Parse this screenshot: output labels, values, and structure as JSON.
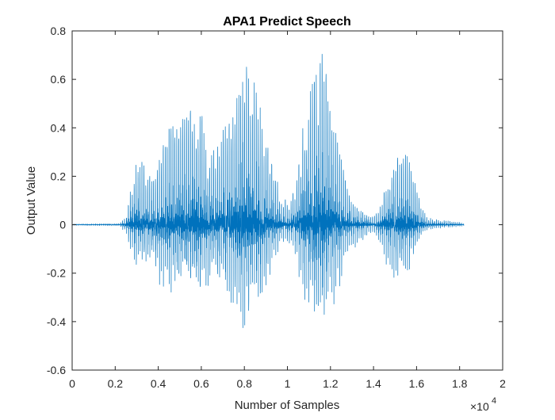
{
  "chart_data": {
    "type": "line",
    "title": "APA1 Predict Speech",
    "xlabel": "Number of Samples",
    "ylabel": "Output Value",
    "x_exponent_label": "×10",
    "x_exponent_value": "4",
    "xlim": [
      0,
      20000
    ],
    "ylim": [
      -0.6,
      0.8
    ],
    "xticks": [
      0,
      2000,
      4000,
      6000,
      8000,
      10000,
      12000,
      14000,
      16000,
      18000,
      20000
    ],
    "xtick_labels": [
      "0",
      "0.2",
      "0.4",
      "0.6",
      "0.8",
      "1",
      "1.2",
      "1.4",
      "1.6",
      "1.8",
      "2"
    ],
    "yticks": [
      -0.6,
      -0.4,
      -0.2,
      0,
      0.2,
      0.4,
      0.6,
      0.8
    ],
    "ytick_labels": [
      "-0.6",
      "-0.4",
      "-0.2",
      "0",
      "0.2",
      "0.4",
      "0.6",
      "0.8"
    ],
    "grid": false,
    "line_color": "#0072BD",
    "series": [
      {
        "x_range": [
          0,
          18200
        ],
        "envelope": {
          "x": [
            0,
            2200,
            2500,
            2700,
            2900,
            3200,
            3500,
            3800,
            4100,
            4500,
            4900,
            5300,
            5700,
            6000,
            6300,
            6700,
            7100,
            7500,
            7800,
            8100,
            8400,
            8700,
            9000,
            9300,
            9700,
            10100,
            10400,
            10700,
            11000,
            11300,
            11600,
            11900,
            12200,
            12500,
            12800,
            13100,
            13400,
            13700,
            13900,
            14100,
            14300,
            14500,
            14800,
            15100,
            15400,
            15600,
            15800,
            16000,
            16200,
            16500,
            17000,
            17500,
            18000,
            18200
          ],
          "upper": [
            0.003,
            0.005,
            0.03,
            0.15,
            0.25,
            0.27,
            0.24,
            0.22,
            0.3,
            0.4,
            0.43,
            0.47,
            0.53,
            0.48,
            0.3,
            0.32,
            0.45,
            0.53,
            0.65,
            0.67,
            0.62,
            0.5,
            0.38,
            0.25,
            0.13,
            0.09,
            0.18,
            0.4,
            0.52,
            0.68,
            0.72,
            0.58,
            0.44,
            0.28,
            0.14,
            0.09,
            0.06,
            0.04,
            0.03,
            0.04,
            0.08,
            0.14,
            0.22,
            0.28,
            0.31,
            0.29,
            0.24,
            0.19,
            0.08,
            0.03,
            0.02,
            0.015,
            0.01,
            0.005
          ],
          "lower": [
            -0.003,
            -0.005,
            -0.04,
            -0.12,
            -0.17,
            -0.16,
            -0.15,
            -0.2,
            -0.26,
            -0.3,
            -0.27,
            -0.24,
            -0.29,
            -0.3,
            -0.26,
            -0.22,
            -0.29,
            -0.39,
            -0.48,
            -0.44,
            -0.38,
            -0.33,
            -0.26,
            -0.2,
            -0.1,
            -0.08,
            -0.18,
            -0.32,
            -0.36,
            -0.4,
            -0.41,
            -0.38,
            -0.34,
            -0.26,
            -0.16,
            -0.1,
            -0.07,
            -0.05,
            -0.03,
            -0.05,
            -0.1,
            -0.17,
            -0.24,
            -0.25,
            -0.23,
            -0.2,
            -0.16,
            -0.12,
            -0.05,
            -0.02,
            -0.015,
            -0.01,
            -0.008,
            -0.004
          ]
        },
        "pitch_period": 90
      }
    ]
  }
}
